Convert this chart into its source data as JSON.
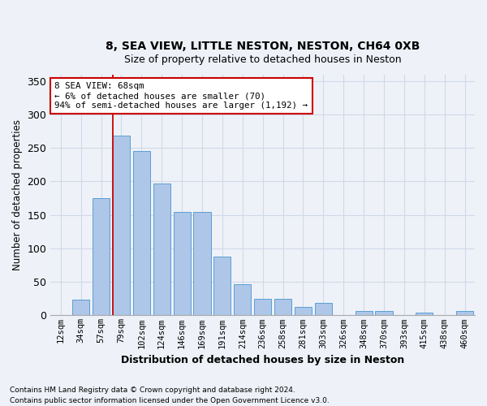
{
  "title1": "8, SEA VIEW, LITTLE NESTON, NESTON, CH64 0XB",
  "title2": "Size of property relative to detached houses in Neston",
  "xlabel": "Distribution of detached houses by size in Neston",
  "ylabel": "Number of detached properties",
  "categories": [
    "12sqm",
    "34sqm",
    "57sqm",
    "79sqm",
    "102sqm",
    "124sqm",
    "146sqm",
    "169sqm",
    "191sqm",
    "214sqm",
    "236sqm",
    "258sqm",
    "281sqm",
    "303sqm",
    "326sqm",
    "348sqm",
    "370sqm",
    "393sqm",
    "415sqm",
    "438sqm",
    "460sqm"
  ],
  "values": [
    0,
    23,
    175,
    268,
    246,
    197,
    154,
    154,
    88,
    46,
    25,
    25,
    12,
    19,
    0,
    7,
    7,
    0,
    4,
    0,
    6
  ],
  "bar_color": "#aec6e8",
  "bar_edge_color": "#5a9fd4",
  "grid_color": "#d0d8e8",
  "background_color": "#eef2f8",
  "annotation_line1": "8 SEA VIEW: 68sqm",
  "annotation_line2": "← 6% of detached houses are smaller (70)",
  "annotation_line3": "94% of semi-detached houses are larger (1,192) →",
  "annotation_box_color": "#ffffff",
  "annotation_box_edge": "#cc0000",
  "vline_color": "#cc0000",
  "vline_xindex": 3.0,
  "ylim_max": 360,
  "yticks": [
    0,
    50,
    100,
    150,
    200,
    250,
    300,
    350
  ],
  "footnote1": "Contains HM Land Registry data © Crown copyright and database right 2024.",
  "footnote2": "Contains public sector information licensed under the Open Government Licence v3.0."
}
